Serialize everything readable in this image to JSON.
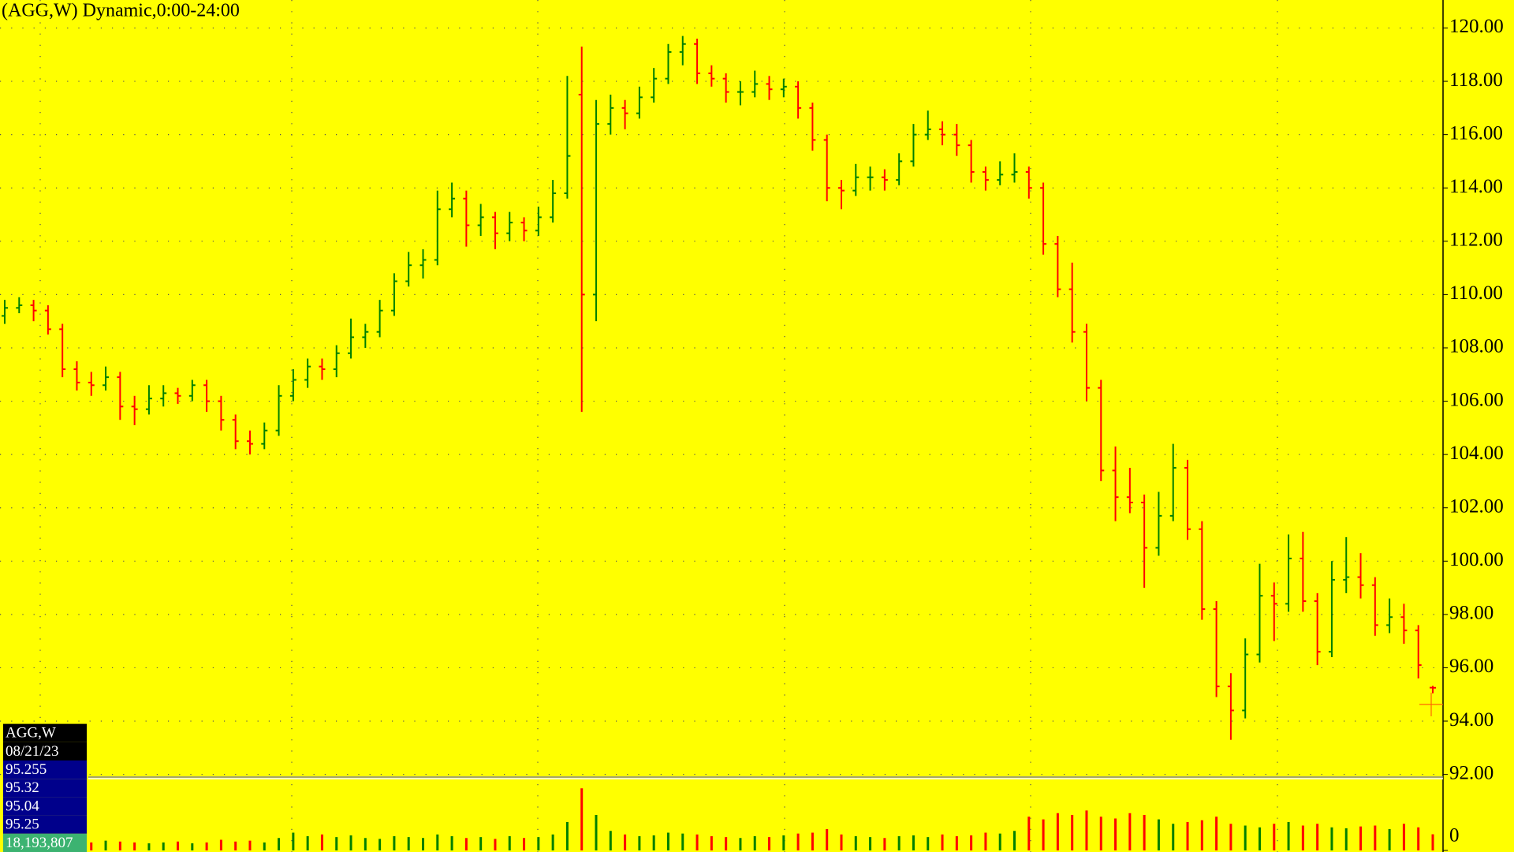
{
  "chart_data": [
    {
      "type": "ohlc",
      "title": "(AGG,W) Dynamic,0:00-24:00",
      "open": [
        109.2,
        109.5,
        109.6,
        109.4,
        108.7,
        107.2,
        106.7,
        106.6,
        106.9,
        105.8,
        105.7,
        106.1,
        106.3,
        106.2,
        106.6,
        106.0,
        105.3,
        104.5,
        104.4,
        104.9,
        106.2,
        106.8,
        107.3,
        107.2,
        107.8,
        108.4,
        108.6,
        109.4,
        110.5,
        111.1,
        111.3,
        113.2,
        113.6,
        112.6,
        112.9,
        112.3,
        112.7,
        112.4,
        112.9,
        113.8,
        117.5,
        110.0,
        116.4,
        117.0,
        116.8,
        117.4,
        118.1,
        119.1,
        119.4,
        118.3,
        118.1,
        117.6,
        117.6,
        117.9,
        117.7,
        117.8,
        117.0,
        115.8,
        114.0,
        113.9,
        114.4,
        114.4,
        114.3,
        115.0,
        116.0,
        116.2,
        116.0,
        115.6,
        114.6,
        114.3,
        114.5,
        114.6,
        114.0,
        111.9,
        110.2,
        108.6,
        106.5,
        103.4,
        102.4,
        102.2,
        100.5,
        101.7,
        103.5,
        101.2,
        98.2,
        95.3,
        94.4,
        96.5,
        98.7,
        98.4,
        100.1,
        98.5,
        96.6,
        99.3,
        99.4,
        99.1,
        97.6,
        97.9,
        97.4,
        95.255
      ],
      "high": [
        109.8,
        109.9,
        109.8,
        109.6,
        108.9,
        107.5,
        107.1,
        107.3,
        107.1,
        106.2,
        106.6,
        106.6,
        106.5,
        106.8,
        106.8,
        106.2,
        105.5,
        104.9,
        105.2,
        106.6,
        107.2,
        107.6,
        107.6,
        108.1,
        109.1,
        108.9,
        109.8,
        110.8,
        111.6,
        111.7,
        113.9,
        114.2,
        113.9,
        113.4,
        113.1,
        113.1,
        112.9,
        113.3,
        114.3,
        118.2,
        119.3,
        117.3,
        117.5,
        117.3,
        117.8,
        118.5,
        119.4,
        119.7,
        119.6,
        118.6,
        118.3,
        118.0,
        118.4,
        118.2,
        118.1,
        118.0,
        117.2,
        116.0,
        114.3,
        114.9,
        114.8,
        114.7,
        115.3,
        116.4,
        116.9,
        116.5,
        116.4,
        115.8,
        114.8,
        115.0,
        115.3,
        114.8,
        114.2,
        112.2,
        111.2,
        108.9,
        106.8,
        104.3,
        103.5,
        102.5,
        102.6,
        104.4,
        103.8,
        101.5,
        98.5,
        95.8,
        97.1,
        99.9,
        99.2,
        101.0,
        101.1,
        98.8,
        100.0,
        100.9,
        100.3,
        99.4,
        98.6,
        98.4,
        97.6,
        95.32
      ],
      "low": [
        108.9,
        109.3,
        109.0,
        108.5,
        106.9,
        106.4,
        106.2,
        106.4,
        105.3,
        105.1,
        105.5,
        105.8,
        105.9,
        106.0,
        105.6,
        104.9,
        104.2,
        104.0,
        104.2,
        104.7,
        106.0,
        106.5,
        106.8,
        106.9,
        107.6,
        108.0,
        108.4,
        109.2,
        110.3,
        110.6,
        111.1,
        112.9,
        111.8,
        112.2,
        111.7,
        112.0,
        112.0,
        112.2,
        112.7,
        113.6,
        105.6,
        109.0,
        116.0,
        116.2,
        116.6,
        117.2,
        117.9,
        118.6,
        117.9,
        117.8,
        117.2,
        117.1,
        117.4,
        117.3,
        117.4,
        116.6,
        115.4,
        113.5,
        113.2,
        113.7,
        113.9,
        113.9,
        114.1,
        114.8,
        115.8,
        115.6,
        115.2,
        114.2,
        113.9,
        114.1,
        114.2,
        113.6,
        111.5,
        109.9,
        108.2,
        106.0,
        103.0,
        101.5,
        101.8,
        99.0,
        100.2,
        101.5,
        100.8,
        97.8,
        94.9,
        93.3,
        94.1,
        96.2,
        97.0,
        98.1,
        98.1,
        96.1,
        96.4,
        98.8,
        98.6,
        97.2,
        97.3,
        96.9,
        95.6,
        95.04
      ],
      "close": [
        109.5,
        109.6,
        109.4,
        108.7,
        107.2,
        106.7,
        106.6,
        106.9,
        105.8,
        105.7,
        106.1,
        106.3,
        106.2,
        106.6,
        106.0,
        105.3,
        104.5,
        104.4,
        104.9,
        106.2,
        106.8,
        107.3,
        107.2,
        107.8,
        108.4,
        108.6,
        109.4,
        110.5,
        111.1,
        111.3,
        113.2,
        113.6,
        112.6,
        112.9,
        112.3,
        112.7,
        112.4,
        112.9,
        113.8,
        115.2,
        110.0,
        116.4,
        117.0,
        116.8,
        117.4,
        118.1,
        119.1,
        119.4,
        118.3,
        118.1,
        117.6,
        117.6,
        117.9,
        117.7,
        117.8,
        117.0,
        115.8,
        114.0,
        113.9,
        114.4,
        114.4,
        114.3,
        115.0,
        116.0,
        116.2,
        116.0,
        115.6,
        114.6,
        114.3,
        114.5,
        114.6,
        114.0,
        111.9,
        110.2,
        108.6,
        106.5,
        103.4,
        102.4,
        102.2,
        100.5,
        101.7,
        103.5,
        101.2,
        98.2,
        95.3,
        94.4,
        96.5,
        98.7,
        98.4,
        100.1,
        98.5,
        96.6,
        99.3,
        99.4,
        99.1,
        97.6,
        97.9,
        97.4,
        96.1,
        95.25
      ],
      "ylim": [
        91.9,
        121.05
      ],
      "yticks": [
        {
          "value": 92,
          "label": "92.00"
        },
        {
          "value": 94,
          "label": "94.00"
        },
        {
          "value": 96,
          "label": "96.00"
        },
        {
          "value": 98,
          "label": "98.00"
        },
        {
          "value": 100,
          "label": "100.00"
        },
        {
          "value": 102,
          "label": "102.00"
        },
        {
          "value": 104,
          "label": "104.00"
        },
        {
          "value": 106,
          "label": "106.00"
        },
        {
          "value": 108,
          "label": "108.00"
        },
        {
          "value": 110,
          "label": "110.00"
        },
        {
          "value": 112,
          "label": "112.00"
        },
        {
          "value": 114,
          "label": "114.00"
        },
        {
          "value": 116,
          "label": "116.00"
        },
        {
          "value": 118,
          "label": "118.00"
        },
        {
          "value": 120,
          "label": "120.00"
        }
      ],
      "grid": true,
      "up_color": "#008000",
      "down_color": "#ff0000"
    },
    {
      "type": "volume",
      "values": [
        12000000,
        10000000,
        11000000,
        9000000,
        10000000,
        8000000,
        9000000,
        11000000,
        10000000,
        9000000,
        8000000,
        9000000,
        10000000,
        8000000,
        9000000,
        12000000,
        10000000,
        11000000,
        9000000,
        14000000,
        20000000,
        16000000,
        18000000,
        15000000,
        17000000,
        14000000,
        13000000,
        16000000,
        15000000,
        14000000,
        18000000,
        16000000,
        14000000,
        15000000,
        13000000,
        16000000,
        14000000,
        15000000,
        18000000,
        32000000,
        70000000,
        40000000,
        22000000,
        18000000,
        16000000,
        17000000,
        20000000,
        19000000,
        18000000,
        16000000,
        15000000,
        14000000,
        16000000,
        15000000,
        17000000,
        19000000,
        20000000,
        24000000,
        18000000,
        16000000,
        15000000,
        14000000,
        16000000,
        17000000,
        15000000,
        18000000,
        16000000,
        17000000,
        20000000,
        19000000,
        22000000,
        38000000,
        35000000,
        42000000,
        40000000,
        45000000,
        38000000,
        36000000,
        42000000,
        40000000,
        35000000,
        30000000,
        32000000,
        34000000,
        38000000,
        30000000,
        28000000,
        26000000,
        30000000,
        32000000,
        28000000,
        30000000,
        26000000,
        25000000,
        27000000,
        28000000,
        24000000,
        30000000,
        26000000,
        18193807
      ],
      "ylim": [
        0,
        80000000
      ],
      "yticks": [
        0
      ]
    }
  ],
  "readout": [
    "AGG,W",
    "08/21/23",
    "95.255",
    "95.32",
    "95.04",
    "95.25",
    "18,193,807"
  ]
}
